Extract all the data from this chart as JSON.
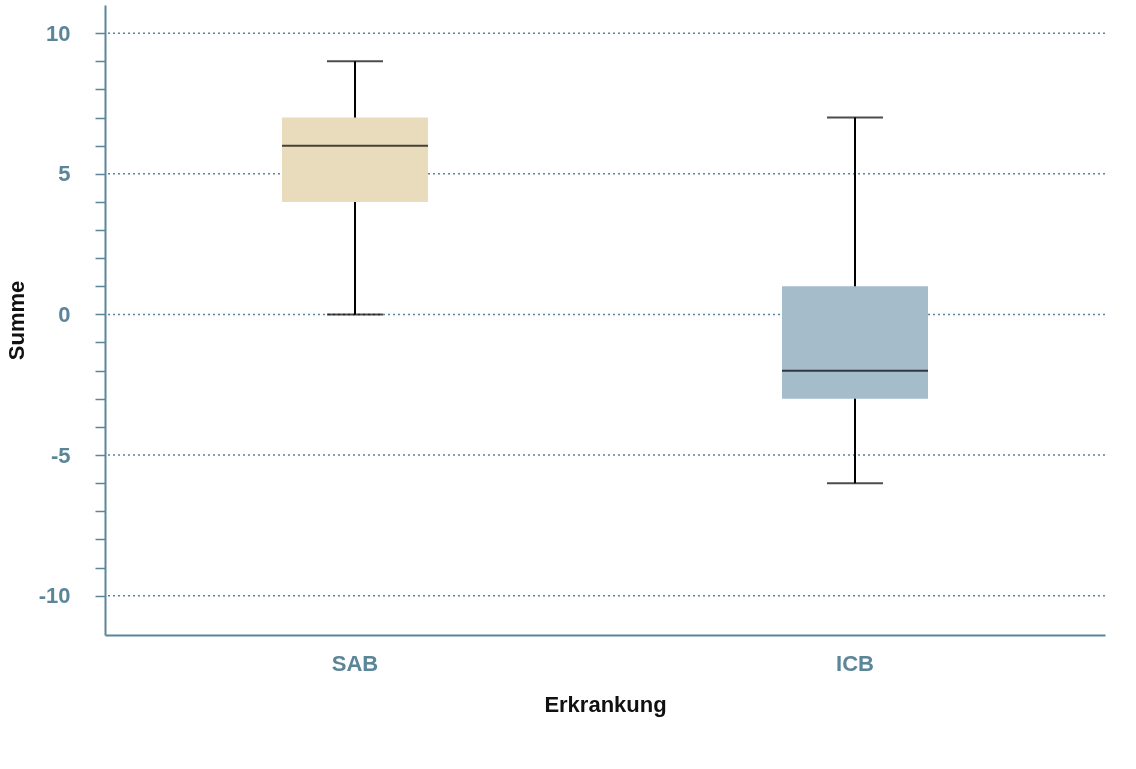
{
  "chart_data": {
    "type": "box",
    "xlabel": "Erkrankung",
    "ylabel": "Summe",
    "categories": [
      "SAB",
      "ICB"
    ],
    "boxes": [
      {
        "low": 0,
        "q1": 4,
        "median": 6,
        "q3": 7,
        "high": 9
      },
      {
        "low": -6,
        "q1": -3,
        "median": -2,
        "q3": 1,
        "high": 7
      }
    ],
    "colors": [
      "#e8dcbc",
      "#a5bccb"
    ],
    "ylim": [
      -11.4,
      11
    ],
    "yticks": [
      -10,
      {
        "value": -9,
        "label": null
      },
      {
        "value": -8,
        "label": null
      },
      {
        "value": -7,
        "label": null
      },
      {
        "value": -6,
        "label": null
      },
      -5,
      {
        "value": -4,
        "label": null
      },
      {
        "value": -3,
        "label": null
      },
      {
        "value": -2,
        "label": null
      },
      {
        "value": -1,
        "label": null
      },
      0,
      {
        "value": 1,
        "label": null
      },
      {
        "value": 2,
        "label": null
      },
      {
        "value": 3,
        "label": null
      },
      {
        "value": 4,
        "label": null
      },
      5,
      {
        "value": 6,
        "label": null
      },
      {
        "value": 7,
        "label": null
      },
      {
        "value": 8,
        "label": null
      },
      {
        "value": 9,
        "label": null
      },
      10
    ],
    "grid": "y"
  }
}
